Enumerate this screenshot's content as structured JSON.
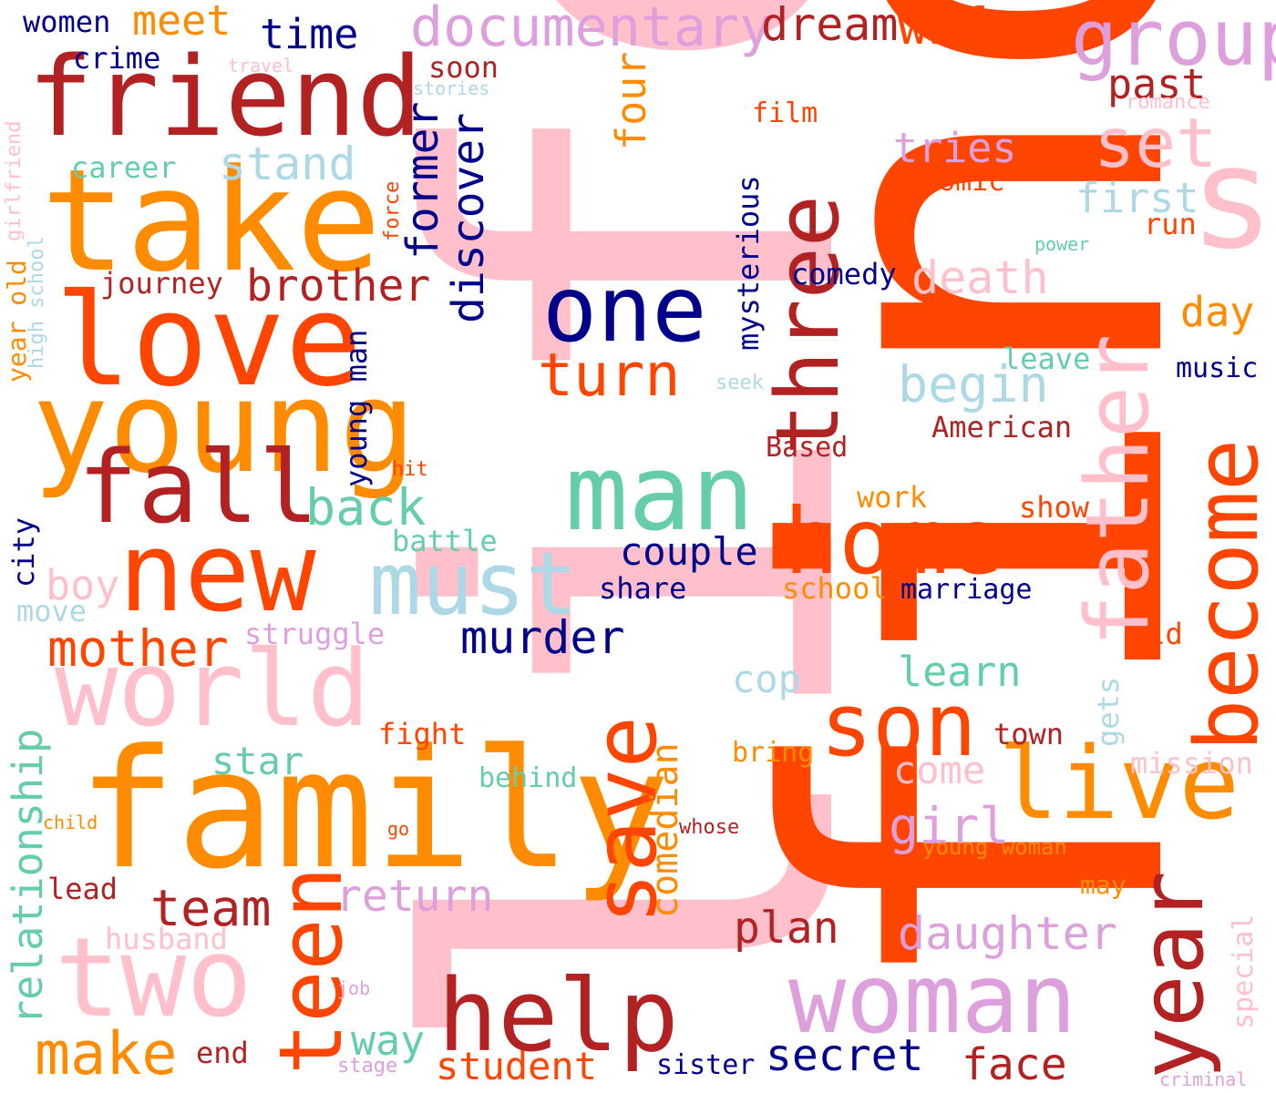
{
  "palette": {
    "pink": "#FFC0CB",
    "orange_red": "#FF4500",
    "dark_orange": "#FF8C00",
    "firebrick": "#B22222",
    "navy": "#00008B",
    "light_blue": "#ADD8E6",
    "aquamarine": "#66CDAA",
    "plum": "#DDA0DD"
  },
  "words": [
    {
      "text": "life",
      "color": "pink"
    },
    {
      "text": "find",
      "color": "orange_red"
    },
    {
      "text": "family",
      "color": "dark_orange"
    },
    {
      "text": "friend",
      "color": "firebrick"
    },
    {
      "text": "take",
      "color": "dark_orange"
    },
    {
      "text": "love",
      "color": "orange_red"
    },
    {
      "text": "young",
      "color": "dark_orange"
    },
    {
      "text": "new",
      "color": "orange_red"
    },
    {
      "text": "fall",
      "color": "firebrick"
    },
    {
      "text": "world",
      "color": "pink"
    },
    {
      "text": "two",
      "color": "pink"
    },
    {
      "text": "man",
      "color": "aquamarine"
    },
    {
      "text": "must",
      "color": "light_blue"
    },
    {
      "text": "one",
      "color": "navy"
    },
    {
      "text": "three",
      "color": "firebrick"
    },
    {
      "text": "home",
      "color": "orange_red"
    },
    {
      "text": "son",
      "color": "orange_red"
    },
    {
      "text": "live",
      "color": "dark_orange"
    },
    {
      "text": "woman",
      "color": "plum"
    },
    {
      "text": "help",
      "color": "firebrick"
    },
    {
      "text": "save",
      "color": "orange_red"
    },
    {
      "text": "teen",
      "color": "orange_red"
    },
    {
      "text": "become",
      "color": "orange_red"
    },
    {
      "text": "father",
      "color": "pink"
    },
    {
      "text": "year",
      "color": "firebrick"
    },
    {
      "text": "s",
      "color": "pink"
    },
    {
      "text": "group",
      "color": "plum"
    },
    {
      "text": "set",
      "color": "pink"
    },
    {
      "text": "documentary",
      "color": "plum"
    },
    {
      "text": "dream",
      "color": "firebrick"
    },
    {
      "text": "wife",
      "color": "orange_red"
    },
    {
      "text": "meet",
      "color": "dark_orange"
    },
    {
      "text": "time",
      "color": "navy"
    },
    {
      "text": "women",
      "color": "navy"
    },
    {
      "text": "crime",
      "color": "navy"
    },
    {
      "text": "travel",
      "color": "pink"
    },
    {
      "text": "stories",
      "color": "light_blue"
    },
    {
      "text": "soon",
      "color": "firebrick"
    },
    {
      "text": "past",
      "color": "firebrick"
    },
    {
      "text": "romance",
      "color": "pink"
    },
    {
      "text": "film",
      "color": "orange_red"
    },
    {
      "text": "tries",
      "color": "plum"
    },
    {
      "text": "comic",
      "color": "orange_red"
    },
    {
      "text": "first",
      "color": "light_blue"
    },
    {
      "text": "run",
      "color": "orange_red"
    },
    {
      "text": "power",
      "color": "aquamarine"
    },
    {
      "text": "career",
      "color": "aquamarine"
    },
    {
      "text": "stand",
      "color": "light_blue"
    },
    {
      "text": "four",
      "color": "dark_orange"
    },
    {
      "text": "former",
      "color": "navy"
    },
    {
      "text": "discover",
      "color": "navy"
    },
    {
      "text": "girlfriend",
      "color": "pink"
    },
    {
      "text": "high school",
      "color": "light_blue"
    },
    {
      "text": "year old",
      "color": "dark_orange"
    },
    {
      "text": "force",
      "color": "orange_red"
    },
    {
      "text": "journey",
      "color": "firebrick"
    },
    {
      "text": "brother",
      "color": "firebrick"
    },
    {
      "text": "mysterious",
      "color": "navy"
    },
    {
      "text": "comedy",
      "color": "navy"
    },
    {
      "text": "death",
      "color": "pink"
    },
    {
      "text": "day",
      "color": "dark_orange"
    },
    {
      "text": "leave",
      "color": "aquamarine"
    },
    {
      "text": "music",
      "color": "navy"
    },
    {
      "text": "seek",
      "color": "light_blue"
    },
    {
      "text": "begin",
      "color": "light_blue"
    },
    {
      "text": "turn",
      "color": "orange_red"
    },
    {
      "text": "young man",
      "color": "navy"
    },
    {
      "text": "American",
      "color": "firebrick"
    },
    {
      "text": "Based",
      "color": "firebrick"
    },
    {
      "text": "hit",
      "color": "orange_red"
    },
    {
      "text": "work",
      "color": "dark_orange"
    },
    {
      "text": "show",
      "color": "orange_red"
    },
    {
      "text": "back",
      "color": "aquamarine"
    },
    {
      "text": "city",
      "color": "navy"
    },
    {
      "text": "battle",
      "color": "aquamarine"
    },
    {
      "text": "couple",
      "color": "navy"
    },
    {
      "text": "boy",
      "color": "pink"
    },
    {
      "text": "share",
      "color": "navy"
    },
    {
      "text": "school",
      "color": "dark_orange"
    },
    {
      "text": "marriage",
      "color": "navy"
    },
    {
      "text": "move",
      "color": "light_blue"
    },
    {
      "text": "struggle",
      "color": "plum"
    },
    {
      "text": "mother",
      "color": "orange_red"
    },
    {
      "text": "murder",
      "color": "navy"
    },
    {
      "text": "old",
      "color": "orange_red"
    },
    {
      "text": "gets",
      "color": "light_blue"
    },
    {
      "text": "cop",
      "color": "light_blue"
    },
    {
      "text": "learn",
      "color": "aquamarine"
    },
    {
      "text": "relationship",
      "color": "aquamarine"
    },
    {
      "text": "fight",
      "color": "orange_red"
    },
    {
      "text": "comedian",
      "color": "dark_orange"
    },
    {
      "text": "town",
      "color": "firebrick"
    },
    {
      "text": "star",
      "color": "aquamarine"
    },
    {
      "text": "bring",
      "color": "dark_orange"
    },
    {
      "text": "mission",
      "color": "pink"
    },
    {
      "text": "behind",
      "color": "aquamarine"
    },
    {
      "text": "come",
      "color": "pink"
    },
    {
      "text": "child",
      "color": "dark_orange"
    },
    {
      "text": "go",
      "color": "orange_red"
    },
    {
      "text": "whose",
      "color": "firebrick"
    },
    {
      "text": "girl",
      "color": "plum"
    },
    {
      "text": "young woman",
      "color": "dark_orange"
    },
    {
      "text": "special",
      "color": "pink"
    },
    {
      "text": "lead",
      "color": "firebrick"
    },
    {
      "text": "team",
      "color": "firebrick"
    },
    {
      "text": "return",
      "color": "plum"
    },
    {
      "text": "may",
      "color": "dark_orange"
    },
    {
      "text": "plan",
      "color": "firebrick"
    },
    {
      "text": "daughter",
      "color": "plum"
    },
    {
      "text": "husband",
      "color": "pink"
    },
    {
      "text": "job",
      "color": "plum"
    },
    {
      "text": "make",
      "color": "dark_orange"
    },
    {
      "text": "way",
      "color": "aquamarine"
    },
    {
      "text": "end",
      "color": "firebrick"
    },
    {
      "text": "stage",
      "color": "plum"
    },
    {
      "text": "student",
      "color": "orange_red"
    },
    {
      "text": "sister",
      "color": "navy"
    },
    {
      "text": "secret",
      "color": "navy"
    },
    {
      "text": "face",
      "color": "firebrick"
    },
    {
      "text": "criminal",
      "color": "plum"
    }
  ]
}
